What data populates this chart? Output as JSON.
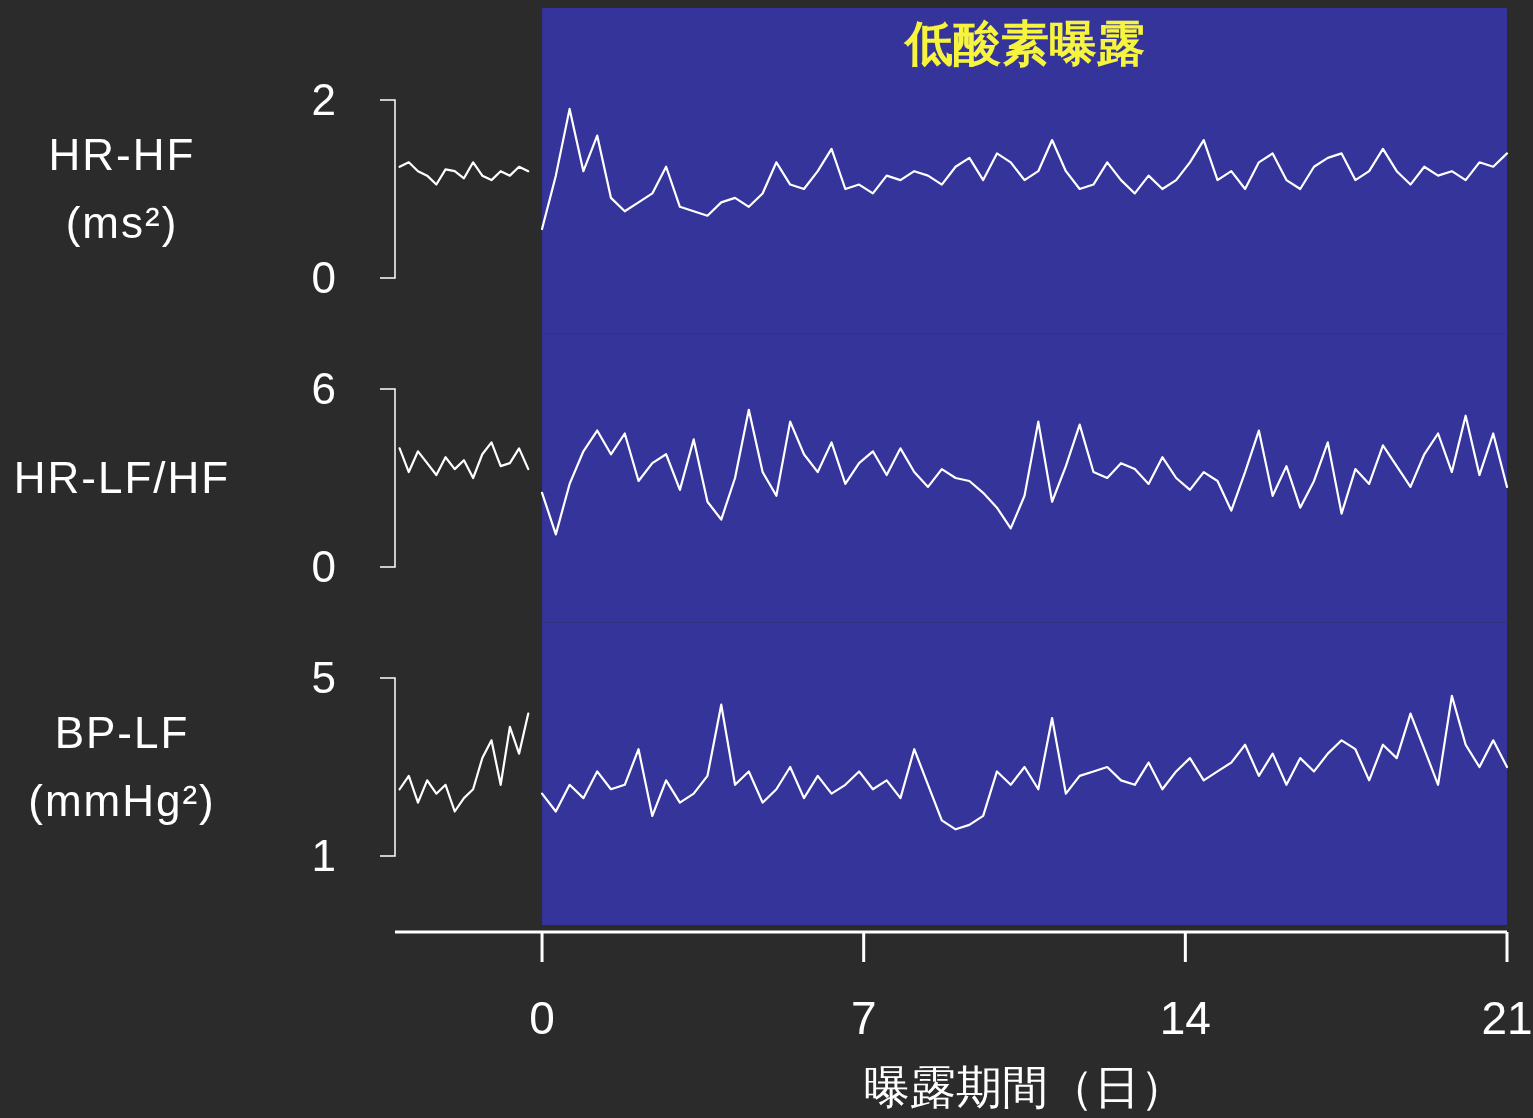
{
  "chart_data": [
    {
      "type": "line",
      "title": "低酸素曝露",
      "ylabel": "HR-HF (ms²)",
      "xlim": [
        -3.2,
        21
      ],
      "xticks": [
        0,
        7,
        14,
        21
      ],
      "ylim": [
        0,
        2
      ],
      "yticks": [
        0,
        2
      ],
      "tick_labels": "y",
      "bands": [
        {
          "axis": "x",
          "from": 0,
          "to": 21,
          "color": "#35349a"
        }
      ],
      "series": [
        {
          "color": "#ffffff",
          "x": [
            -3.1,
            -2.9,
            -2.7,
            -2.5,
            -2.3,
            -2.1,
            -1.9,
            -1.7,
            -1.5,
            -1.3,
            -1.1,
            -0.9,
            -0.7,
            -0.5,
            -0.3
          ],
          "values": [
            1.25,
            1.3,
            1.2,
            1.15,
            1.05,
            1.22,
            1.2,
            1.12,
            1.3,
            1.15,
            1.1,
            1.2,
            1.15,
            1.25,
            1.2
          ]
        },
        {
          "color": "#ffffff",
          "x": [
            0,
            0.3,
            0.6,
            0.9,
            1.2,
            1.5,
            1.8,
            2.1,
            2.4,
            2.7,
            3,
            3.3,
            3.6,
            3.9,
            4.2,
            4.5,
            4.8,
            5.1,
            5.4,
            5.7,
            6,
            6.3,
            6.6,
            6.9,
            7.2,
            7.5,
            7.8,
            8.1,
            8.4,
            8.7,
            9,
            9.3,
            9.6,
            9.9,
            10.2,
            10.5,
            10.8,
            11.1,
            11.4,
            11.7,
            12,
            12.3,
            12.6,
            12.9,
            13.2,
            13.5,
            13.8,
            14.1,
            14.4,
            14.7,
            15,
            15.3,
            15.6,
            15.9,
            16.2,
            16.5,
            16.8,
            17.1,
            17.4,
            17.7,
            18,
            18.3,
            18.6,
            18.9,
            19.2,
            19.5,
            19.8,
            20.1,
            20.4,
            20.7,
            21
          ],
          "values": [
            0.55,
            1.15,
            1.9,
            1.2,
            1.6,
            0.9,
            0.75,
            0.85,
            0.95,
            1.25,
            0.8,
            0.75,
            0.7,
            0.85,
            0.9,
            0.8,
            0.95,
            1.3,
            1.05,
            1.0,
            1.2,
            1.45,
            1.0,
            1.05,
            0.95,
            1.15,
            1.1,
            1.2,
            1.15,
            1.05,
            1.25,
            1.35,
            1.1,
            1.4,
            1.3,
            1.1,
            1.2,
            1.55,
            1.2,
            1.0,
            1.05,
            1.3,
            1.1,
            0.95,
            1.15,
            1.0,
            1.1,
            1.3,
            1.55,
            1.1,
            1.2,
            1.0,
            1.3,
            1.4,
            1.1,
            1.0,
            1.25,
            1.35,
            1.4,
            1.1,
            1.2,
            1.45,
            1.2,
            1.05,
            1.25,
            1.15,
            1.2,
            1.1,
            1.3,
            1.25,
            1.4
          ]
        }
      ]
    },
    {
      "type": "line",
      "ylabel": "HR-LF/HF",
      "xlim": [
        -3.2,
        21
      ],
      "xticks": [
        0,
        7,
        14,
        21
      ],
      "ylim": [
        0,
        6
      ],
      "yticks": [
        0,
        6
      ],
      "tick_labels": "y",
      "bands": [
        {
          "axis": "x",
          "from": 0,
          "to": 21,
          "color": "#35349a"
        }
      ],
      "series": [
        {
          "color": "#ffffff",
          "x": [
            -3.1,
            -2.9,
            -2.7,
            -2.5,
            -2.3,
            -2.1,
            -1.9,
            -1.7,
            -1.5,
            -1.3,
            -1.1,
            -0.9,
            -0.7,
            -0.5,
            -0.3
          ],
          "values": [
            4.0,
            3.2,
            3.9,
            3.5,
            3.1,
            3.7,
            3.3,
            3.6,
            3.0,
            3.8,
            4.2,
            3.4,
            3.5,
            4.0,
            3.3
          ]
        },
        {
          "color": "#ffffff",
          "x": [
            0,
            0.3,
            0.6,
            0.9,
            1.2,
            1.5,
            1.8,
            2.1,
            2.4,
            2.7,
            3,
            3.3,
            3.6,
            3.9,
            4.2,
            4.5,
            4.8,
            5.1,
            5.4,
            5.7,
            6,
            6.3,
            6.6,
            6.9,
            7.2,
            7.5,
            7.8,
            8.1,
            8.4,
            8.7,
            9,
            9.3,
            9.6,
            9.9,
            10.2,
            10.5,
            10.8,
            11.1,
            11.4,
            11.7,
            12,
            12.3,
            12.6,
            12.9,
            13.2,
            13.5,
            13.8,
            14.1,
            14.4,
            14.7,
            15,
            15.3,
            15.6,
            15.9,
            16.2,
            16.5,
            16.8,
            17.1,
            17.4,
            17.7,
            18,
            18.3,
            18.6,
            18.9,
            19.2,
            19.5,
            19.8,
            20.1,
            20.4,
            20.7,
            21
          ],
          "values": [
            2.5,
            1.1,
            2.8,
            3.9,
            4.6,
            3.8,
            4.5,
            2.9,
            3.5,
            3.8,
            2.6,
            4.3,
            2.2,
            1.6,
            3.0,
            5.3,
            3.2,
            2.4,
            4.9,
            3.8,
            3.2,
            4.2,
            2.8,
            3.5,
            3.9,
            3.1,
            4.0,
            3.2,
            2.7,
            3.3,
            3.0,
            2.9,
            2.5,
            2.0,
            1.3,
            2.4,
            4.9,
            2.2,
            3.4,
            4.8,
            3.2,
            3.0,
            3.5,
            3.3,
            2.8,
            3.7,
            3.0,
            2.6,
            3.2,
            2.9,
            1.9,
            3.2,
            4.6,
            2.4,
            3.4,
            2.0,
            2.9,
            4.2,
            1.8,
            3.3,
            2.8,
            4.1,
            3.4,
            2.7,
            3.8,
            4.5,
            3.2,
            5.1,
            3.1,
            4.5,
            2.7
          ]
        }
      ]
    },
    {
      "type": "line",
      "ylabel": "BP-LF (mmHg²)",
      "xlabel": "曝露期間（日）",
      "xlim": [
        -3.2,
        21
      ],
      "xticks": [
        0,
        7,
        14,
        21
      ],
      "ylim": [
        1,
        5
      ],
      "yticks": [
        1,
        5
      ],
      "bands": [
        {
          "axis": "x",
          "from": 0,
          "to": 21,
          "color": "#35349a"
        }
      ],
      "series": [
        {
          "color": "#ffffff",
          "x": [
            -3.1,
            -2.9,
            -2.7,
            -2.5,
            -2.3,
            -2.1,
            -1.9,
            -1.7,
            -1.5,
            -1.3,
            -1.1,
            -0.9,
            -0.7,
            -0.5,
            -0.3
          ],
          "values": [
            2.5,
            2.8,
            2.2,
            2.7,
            2.4,
            2.6,
            2.0,
            2.3,
            2.5,
            3.2,
            3.6,
            2.6,
            3.9,
            3.3,
            4.2
          ]
        },
        {
          "color": "#ffffff",
          "x": [
            0,
            0.3,
            0.6,
            0.9,
            1.2,
            1.5,
            1.8,
            2.1,
            2.4,
            2.7,
            3,
            3.3,
            3.6,
            3.9,
            4.2,
            4.5,
            4.8,
            5.1,
            5.4,
            5.7,
            6,
            6.3,
            6.6,
            6.9,
            7.2,
            7.5,
            7.8,
            8.1,
            8.4,
            8.7,
            9,
            9.3,
            9.6,
            9.9,
            10.2,
            10.5,
            10.8,
            11.1,
            11.4,
            11.7,
            12,
            12.3,
            12.6,
            12.9,
            13.2,
            13.5,
            13.8,
            14.1,
            14.4,
            14.7,
            15,
            15.3,
            15.6,
            15.9,
            16.2,
            16.5,
            16.8,
            17.1,
            17.4,
            17.7,
            18,
            18.3,
            18.6,
            18.9,
            19.2,
            19.5,
            19.8,
            20.1,
            20.4,
            20.7,
            21
          ],
          "values": [
            2.4,
            2.0,
            2.6,
            2.3,
            2.9,
            2.5,
            2.6,
            3.4,
            1.9,
            2.7,
            2.2,
            2.4,
            2.8,
            4.4,
            2.6,
            2.9,
            2.2,
            2.5,
            3.0,
            2.3,
            2.8,
            2.4,
            2.6,
            2.9,
            2.5,
            2.7,
            2.3,
            3.4,
            2.6,
            1.8,
            1.6,
            1.7,
            1.9,
            2.9,
            2.6,
            3.0,
            2.5,
            4.1,
            2.4,
            2.8,
            2.9,
            3.0,
            2.7,
            2.6,
            3.1,
            2.5,
            2.9,
            3.2,
            2.7,
            2.9,
            3.1,
            3.5,
            2.8,
            3.3,
            2.6,
            3.2,
            2.9,
            3.3,
            3.6,
            3.4,
            2.7,
            3.5,
            3.2,
            4.2,
            3.4,
            2.6,
            4.6,
            3.5,
            3.0,
            3.6,
            3.0
          ]
        }
      ]
    }
  ]
}
